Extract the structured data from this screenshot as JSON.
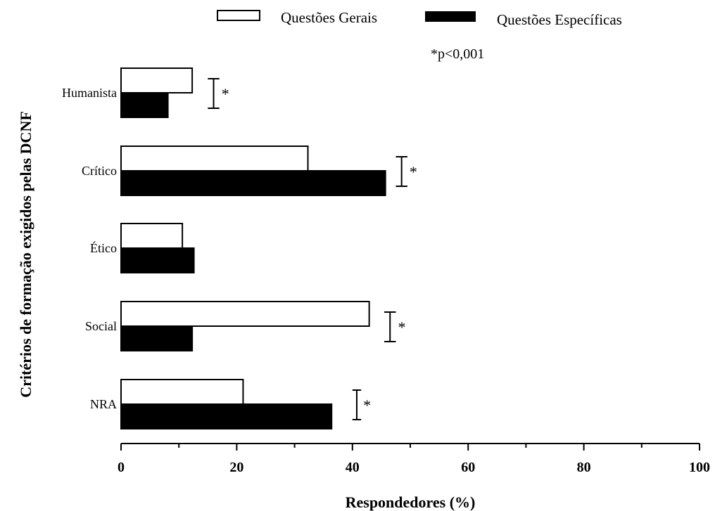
{
  "chart_data": {
    "type": "bar",
    "orientation": "horizontal",
    "title": "",
    "xlabel": "Respondedores (%)",
    "ylabel": "Critérios de formação exigidos pelas DCNF",
    "xlim": [
      0,
      100
    ],
    "x_ticks": [
      "0",
      "20",
      "40",
      "60",
      "80",
      "100"
    ],
    "categories": [
      "Humanista",
      "Crítico",
      "Ético",
      "Social",
      "NRA"
    ],
    "series": [
      {
        "name": "Questões Gerais",
        "fill": "#ffffff",
        "values": [
          12.3,
          32.3,
          10.6,
          42.9,
          21.1
        ]
      },
      {
        "name": "Questões Específicas",
        "fill": "#000000",
        "values": [
          8.1,
          45.7,
          12.6,
          12.3,
          36.4
        ]
      }
    ],
    "significance": [
      {
        "category": "Humanista",
        "low": 15,
        "high": 17,
        "mark": "*"
      },
      {
        "category": "Crítico",
        "low": 47.5,
        "high": 49.5,
        "mark": "*"
      },
      {
        "category": "Social",
        "low": 45.5,
        "high": 47.5,
        "mark": "*"
      },
      {
        "category": "NRA",
        "low": 40,
        "high": 41.5,
        "mark": "*"
      }
    ],
    "note": "*p<0,001",
    "legend_position": "top",
    "grid": false,
    "colors": {
      "bar_outline": "#000000",
      "axis": "#000000"
    }
  }
}
